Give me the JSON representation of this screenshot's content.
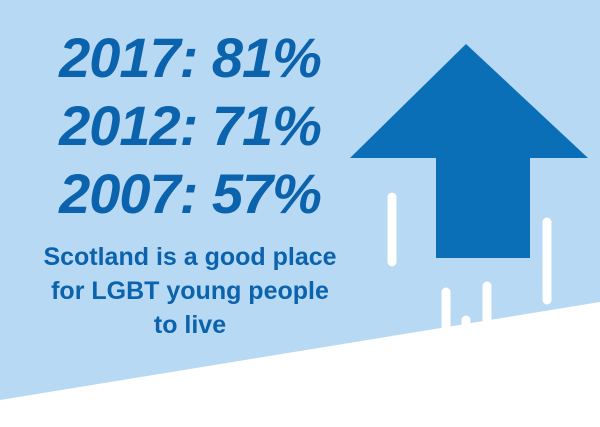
{
  "colors": {
    "panel_background": "#b7d9f3",
    "text_primary": "#0b63ad",
    "arrow_fill": "#0b6fb8",
    "speed_lines": "#ffffff"
  },
  "stats": [
    {
      "label": "2017: 81%"
    },
    {
      "label": "2012: 71%"
    },
    {
      "label": "2007: 57%"
    }
  ],
  "caption": "Scotland is a good place for LGBT young people to live",
  "graphic": {
    "icon": "up-arrow-icon",
    "trend": "increasing"
  }
}
